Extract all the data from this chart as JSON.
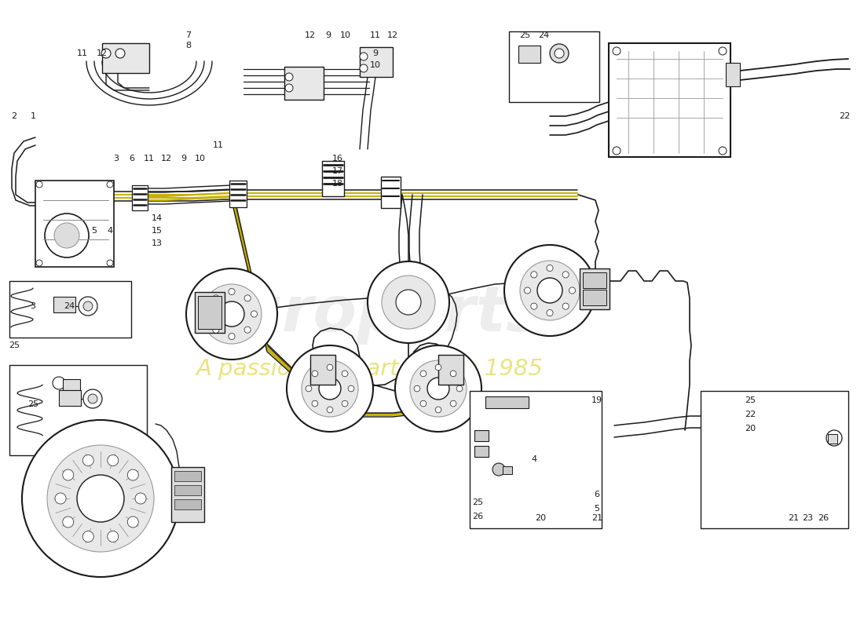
{
  "bg": "#ffffff",
  "lc": "#1a1a1a",
  "watermark1": "europarts",
  "watermark2": "A passion for parts since 1985",
  "wm1_color": "#b0b0b0",
  "wm2_color": "#d4c800",
  "figsize": [
    11.0,
    8.0
  ],
  "dpi": 100,
  "labels_top_left": [
    [
      "11",
      105,
      68
    ],
    [
      "12",
      130,
      68
    ],
    [
      "7",
      240,
      45
    ],
    [
      "8",
      240,
      58
    ],
    [
      "2",
      18,
      148
    ],
    [
      "1",
      42,
      148
    ],
    [
      "3",
      148,
      202
    ],
    [
      "6",
      168,
      202
    ],
    [
      "11",
      190,
      202
    ],
    [
      "12",
      212,
      202
    ],
    [
      "9",
      234,
      202
    ],
    [
      "10",
      255,
      202
    ],
    [
      "11",
      278,
      185
    ],
    [
      "14",
      200,
      278
    ],
    [
      "15",
      200,
      294
    ],
    [
      "13",
      200,
      310
    ],
    [
      "5",
      120,
      294
    ],
    [
      "4",
      140,
      294
    ]
  ],
  "labels_top_center": [
    [
      "12",
      395,
      45
    ],
    [
      "9",
      418,
      45
    ],
    [
      "10",
      440,
      45
    ],
    [
      "11",
      478,
      45
    ],
    [
      "12",
      500,
      45
    ],
    [
      "9",
      478,
      68
    ],
    [
      "10",
      478,
      83
    ],
    [
      "16",
      430,
      202
    ],
    [
      "17",
      430,
      218
    ],
    [
      "18",
      430,
      234
    ]
  ],
  "labels_top_right_sensor": [
    [
      "25",
      668,
      45
    ],
    [
      "24",
      692,
      45
    ]
  ],
  "label_22": [
    "22",
    1075,
    148
  ],
  "labels_mid_left": [
    [
      "3",
      42,
      390
    ],
    [
      "24",
      88,
      390
    ],
    [
      "25",
      18,
      440
    ]
  ],
  "label_25_bl": [
    "25",
    42,
    515
  ],
  "labels_bottom_center": [
    [
      "19",
      760,
      510
    ],
    [
      "4",
      680,
      585
    ],
    [
      "25",
      608,
      640
    ],
    [
      "26",
      608,
      658
    ],
    [
      "6",
      760,
      630
    ],
    [
      "5",
      760,
      648
    ],
    [
      "20",
      688,
      660
    ],
    [
      "21",
      760,
      660
    ]
  ],
  "labels_bottom_right": [
    [
      "25",
      955,
      510
    ],
    [
      "22",
      955,
      528
    ],
    [
      "20",
      955,
      546
    ],
    [
      "21",
      1010,
      660
    ],
    [
      "23",
      1028,
      660
    ],
    [
      "26",
      1048,
      660
    ]
  ]
}
